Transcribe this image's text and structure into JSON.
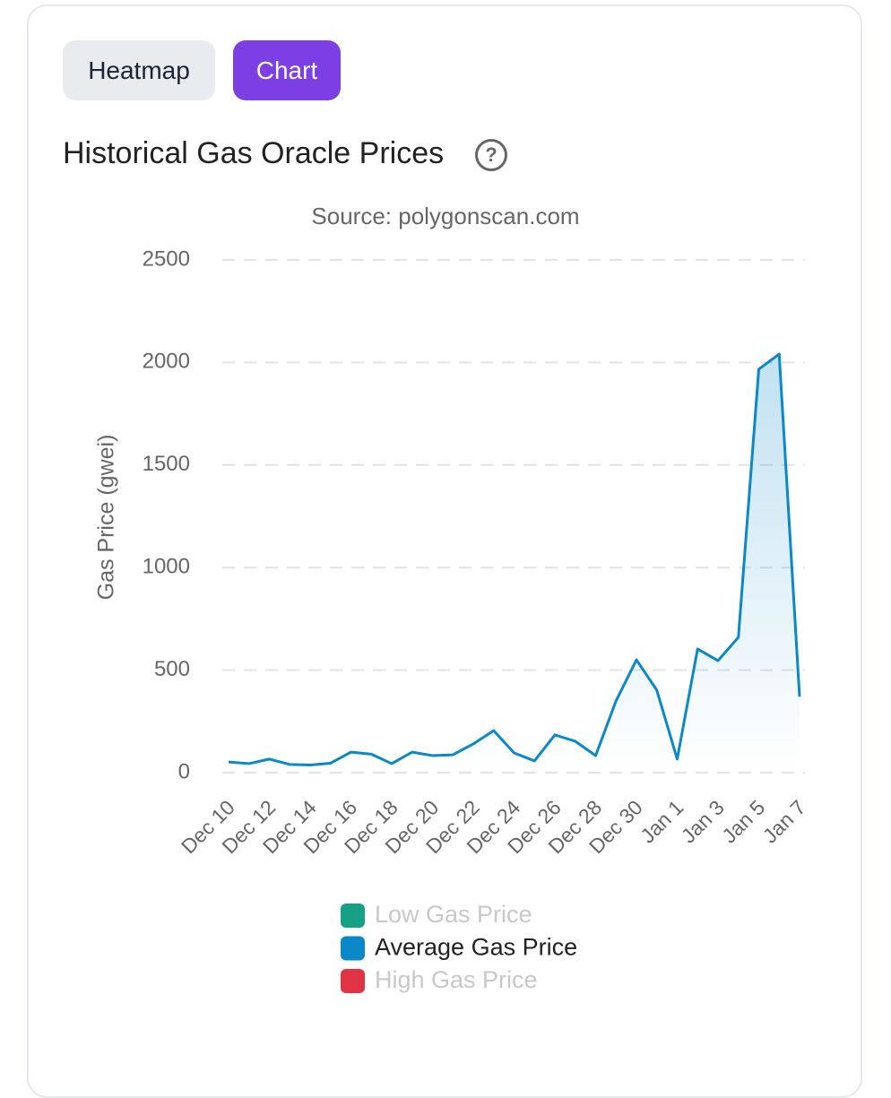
{
  "tabs": [
    "Heatmap",
    "Chart"
  ],
  "heading": "Historical Gas Oracle Prices",
  "help_icon": "?",
  "chart_data": {
    "type": "line",
    "title": "Source: polygonscan.com",
    "y_label": "Gas Price (gwei)",
    "categories": [
      "Dec 10",
      null,
      "Dec 12",
      null,
      "Dec 14",
      null,
      "Dec 16",
      null,
      "Dec 18",
      null,
      "Dec 20",
      null,
      "Dec 22",
      null,
      "Dec 24",
      null,
      "Dec 26",
      null,
      "Dec 28",
      null,
      "Dec 30",
      null,
      "Jan 1",
      null,
      "Jan 3",
      null,
      "Jan 5",
      null,
      "Jan 7"
    ],
    "series": [
      {
        "name": "Average Gas Price",
        "color": "#0a88c8",
        "values": [
          52,
          44,
          66,
          40,
          37,
          46,
          100,
          90,
          44,
          100,
          83,
          87,
          140,
          205,
          96,
          57,
          184,
          153,
          83,
          350,
          550,
          402,
          66,
          603,
          546,
          660,
          1967,
          2041,
          370
        ]
      }
    ],
    "legend": [
      {
        "name": "Low Gas Price",
        "color": "#16a085",
        "active": false
      },
      {
        "name": "Average Gas Price",
        "color": "#0a88c8",
        "active": true
      },
      {
        "name": "High Gas Price",
        "color": "#e03444",
        "active": false
      }
    ],
    "ylim": [
      0,
      2500
    ],
    "yticks": [
      0,
      500,
      1000,
      1500,
      2000,
      2500
    ],
    "grid": true
  }
}
